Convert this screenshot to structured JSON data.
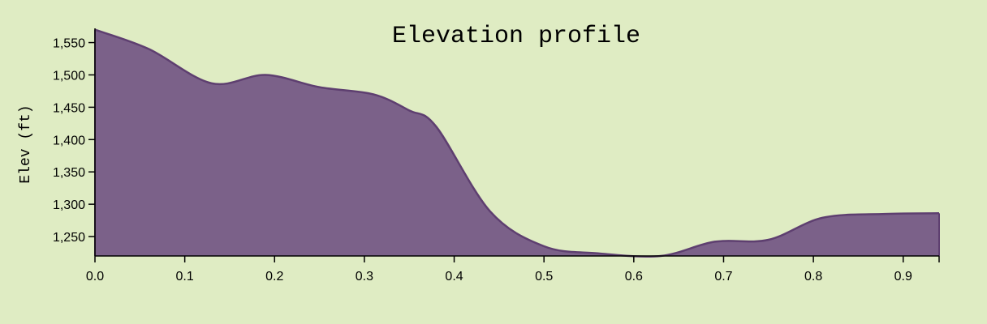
{
  "chart_data": {
    "type": "area",
    "title": "Elevation profile",
    "xlabel": "",
    "ylabel": "Elev (ft)",
    "xlim": [
      0,
      0.94
    ],
    "ylim": [
      1220,
      1572
    ],
    "x_ticks": [
      0.0,
      0.1,
      0.2,
      0.3,
      0.4,
      0.5,
      0.6,
      0.7,
      0.8,
      0.9
    ],
    "x_tick_labels": [
      "0.0",
      "0.1",
      "0.2",
      "0.3",
      "0.4",
      "0.5",
      "0.6",
      "0.7",
      "0.8",
      "0.9"
    ],
    "y_ticks": [
      1250,
      1300,
      1350,
      1400,
      1450,
      1500,
      1550
    ],
    "y_tick_labels": [
      "1,250",
      "1,300",
      "1,350",
      "1,400",
      "1,450",
      "1,500",
      "1,550"
    ],
    "grid": false,
    "legend": "none",
    "colors": {
      "background": "#dfecc3",
      "fill": "#7b6189",
      "line": "#5e3f70"
    },
    "series": [
      {
        "x": [
          0.0,
          0.06,
          0.13,
          0.19,
          0.25,
          0.31,
          0.35,
          0.38,
          0.44,
          0.5,
          0.56,
          0.63,
          0.69,
          0.75,
          0.81,
          0.88,
          0.94
        ],
        "y": [
          1570,
          1540,
          1487,
          1500,
          1481,
          1470,
          1445,
          1420,
          1289,
          1235,
          1224,
          1220,
          1242,
          1245,
          1279,
          1285,
          1286
        ]
      }
    ]
  }
}
